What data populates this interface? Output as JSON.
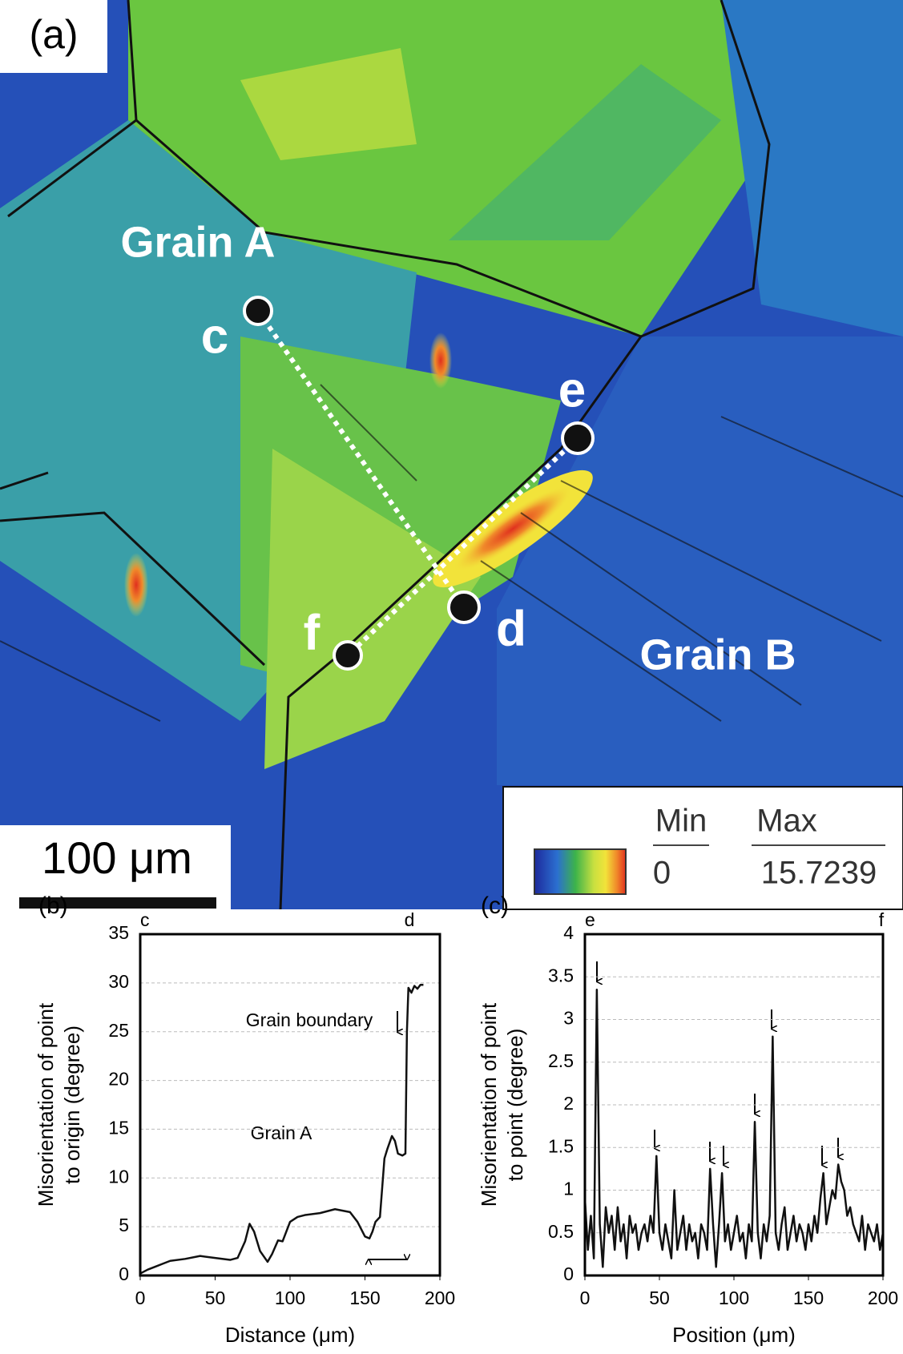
{
  "map": {
    "panel_label": "(a)",
    "grain_a": "Grain A",
    "grain_b": "Grain B",
    "points": [
      "c",
      "d",
      "e",
      "f"
    ],
    "scale_bar": "100 μm",
    "legend": {
      "min_title": "Min",
      "max_title": "Max",
      "min_value": "0",
      "max_value": "15.7239"
    }
  },
  "chart_data": [
    {
      "type": "line",
      "panel_label": "(b)",
      "start_label": "c",
      "end_label": "d",
      "ylabel": [
        "Misorientation of point",
        "to origin (degree)"
      ],
      "xlabel": "Distance (μm)",
      "annotations": [
        "Grain boundary",
        "Grain A"
      ],
      "xlim": [
        0,
        200
      ],
      "xticks": [
        0,
        50,
        100,
        150,
        200
      ],
      "ylim": [
        0,
        35
      ],
      "yticks": [
        0,
        5,
        10,
        15,
        20,
        25,
        30,
        35
      ],
      "grid": true,
      "x": [
        0,
        5,
        10,
        15,
        20,
        30,
        40,
        50,
        60,
        65,
        70,
        73,
        76,
        80,
        85,
        88,
        92,
        95,
        100,
        105,
        110,
        120,
        130,
        140,
        145,
        150,
        153,
        155,
        157,
        160,
        163,
        165,
        168,
        170,
        172,
        175,
        177,
        178,
        179,
        181,
        183,
        185,
        187,
        189
      ],
      "series": [
        {
          "color": "#111111",
          "values": [
            0.2,
            0.6,
            0.9,
            1.2,
            1.5,
            1.7,
            2,
            1.8,
            1.6,
            1.8,
            3.5,
            5.3,
            4.5,
            2.5,
            1.4,
            2.2,
            3.6,
            3.5,
            5.5,
            6,
            6.2,
            6.4,
            6.8,
            6.5,
            5.5,
            4,
            3.8,
            4.5,
            5.5,
            6,
            12,
            13,
            14.3,
            13.8,
            12.5,
            12.3,
            12.5,
            25,
            29.5,
            29,
            29.7,
            29.4,
            29.8,
            29.8
          ]
        }
      ]
    },
    {
      "type": "line",
      "panel_label": "(c)",
      "start_label": "e",
      "end_label": "f",
      "ylabel": [
        "Misorientation of point",
        "to point (degree)"
      ],
      "xlabel": "Position (μm)",
      "xlim": [
        0,
        200
      ],
      "xticks": [
        0,
        50,
        100,
        150,
        200
      ],
      "ylim": [
        0,
        4
      ],
      "yticks": [
        0,
        0.5,
        1,
        1.5,
        2,
        2.5,
        3,
        3.5,
        4
      ],
      "grid": true,
      "x": [
        0,
        2,
        4,
        6,
        8,
        10,
        12,
        14,
        16,
        18,
        20,
        22,
        24,
        26,
        28,
        30,
        32,
        34,
        36,
        38,
        40,
        42,
        44,
        46,
        48,
        50,
        52,
        54,
        56,
        58,
        60,
        62,
        64,
        66,
        68,
        70,
        72,
        74,
        76,
        78,
        80,
        82,
        84,
        86,
        88,
        90,
        92,
        94,
        96,
        98,
        100,
        102,
        104,
        106,
        108,
        110,
        112,
        114,
        116,
        118,
        120,
        122,
        124,
        126,
        128,
        130,
        132,
        134,
        136,
        138,
        140,
        142,
        144,
        146,
        148,
        150,
        152,
        154,
        156,
        158,
        160,
        162,
        164,
        166,
        168,
        170,
        172,
        174,
        176,
        178,
        180,
        182,
        184,
        186,
        188,
        190,
        192,
        194,
        196,
        198,
        200
      ],
      "series": [
        {
          "color": "#111111",
          "values": [
            0.9,
            0.3,
            0.7,
            0.2,
            3.35,
            0.6,
            0.1,
            0.8,
            0.5,
            0.7,
            0.3,
            0.8,
            0.4,
            0.6,
            0.2,
            0.7,
            0.5,
            0.6,
            0.3,
            0.5,
            0.6,
            0.4,
            0.7,
            0.5,
            1.4,
            0.5,
            0.3,
            0.6,
            0.4,
            0.2,
            1.0,
            0.3,
            0.5,
            0.7,
            0.3,
            0.6,
            0.4,
            0.5,
            0.2,
            0.6,
            0.5,
            0.3,
            1.25,
            0.6,
            0.1,
            0.6,
            1.2,
            0.4,
            0.6,
            0.3,
            0.5,
            0.7,
            0.4,
            0.5,
            0.2,
            0.6,
            0.4,
            1.8,
            0.5,
            0.2,
            0.6,
            0.4,
            0.7,
            2.8,
            0.5,
            0.3,
            0.6,
            0.8,
            0.3,
            0.5,
            0.7,
            0.4,
            0.6,
            0.5,
            0.3,
            0.6,
            0.4,
            0.7,
            0.5,
            0.9,
            1.2,
            0.6,
            0.8,
            1.0,
            0.9,
            1.3,
            1.1,
            1.0,
            0.7,
            0.8,
            0.6,
            0.5,
            0.4,
            0.7,
            0.3,
            0.6,
            0.5,
            0.4,
            0.6,
            0.3,
            0.5
          ]
        }
      ]
    }
  ]
}
